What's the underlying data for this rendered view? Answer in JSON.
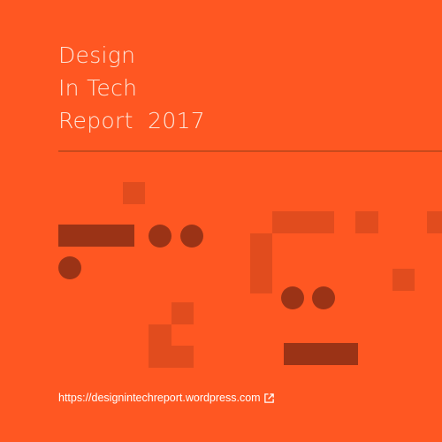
{
  "cover": {
    "title_lines": [
      "Design",
      "In Tech",
      "Report  2017"
    ]
  },
  "footer": {
    "url_text": "https://designintechreport.wordpress.com",
    "link_icon": "external-link-icon"
  },
  "colors": {
    "background": "#ff5722",
    "dark_shape": "#9b3316",
    "mid_shape": "#e14c1e",
    "title_text": "#fde6da"
  }
}
